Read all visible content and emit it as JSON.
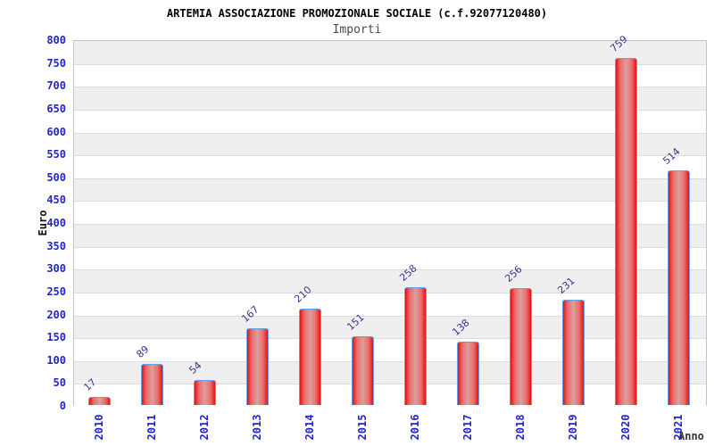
{
  "chart_data": {
    "type": "bar",
    "title": "ARTEMIA ASSOCIAZIONE PROMOZIONALE SOCIALE (c.f.92077120480)",
    "subtitle": "Importi",
    "xlabel": "Anno",
    "ylabel": "Euro",
    "categories": [
      "2010",
      "2011",
      "2012",
      "2013",
      "2014",
      "2015",
      "2016",
      "2017",
      "2018",
      "2019",
      "2020",
      "2021"
    ],
    "values": [
      17,
      89,
      54,
      167,
      210,
      151,
      258,
      138,
      256,
      231,
      759,
      514
    ],
    "value_labels": [
      "17",
      "89",
      "54",
      "167",
      "210",
      "151",
      "258",
      "138",
      "256",
      "231",
      "759",
      "514"
    ],
    "ylim": [
      0,
      800
    ],
    "ytick_step": 50,
    "yticks": [
      0,
      50,
      100,
      150,
      200,
      250,
      300,
      350,
      400,
      450,
      500,
      550,
      600,
      650,
      700,
      750,
      800
    ],
    "grid": true,
    "legend": "none",
    "band_fill": "alternating horizontal 50-unit bands, gray starting at top",
    "colors": {
      "title": "#000000",
      "subtitle": "#4a4a4a",
      "axis_label": "#2424cd",
      "value_label": "#333392",
      "bar_edge": "#e31212",
      "bar_center": "#d89f9f",
      "bar_border": "#66a0e8",
      "band_gray": "#efefef",
      "band_white": "#ffffff",
      "gridline": "#dcdcdc",
      "plot_border": "#c4c4c4"
    }
  }
}
